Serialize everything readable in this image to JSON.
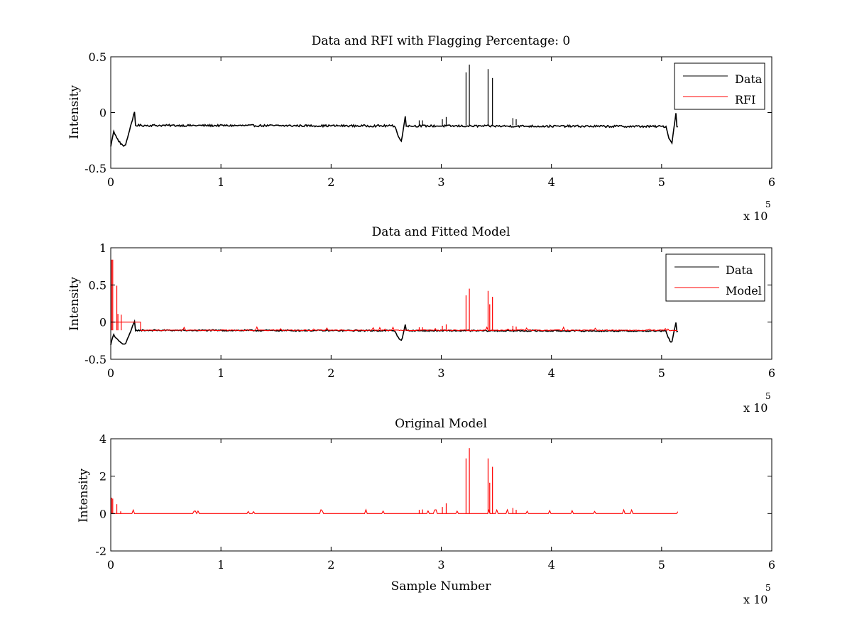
{
  "chart_data": [
    {
      "type": "line",
      "title": "Data and RFI with Flagging Percentage: 0",
      "xlabel": "",
      "ylabel": "Intensity",
      "xlim": [
        0,
        600000
      ],
      "ylim": [
        -0.5,
        0.5
      ],
      "x_ticks": [
        0,
        1,
        2,
        3,
        4,
        5,
        6
      ],
      "y_ticks": [
        "-0.5",
        "0",
        "0.5"
      ],
      "x_multiplier": "x 10",
      "x_multiplier_exp": "5",
      "legend": {
        "position": "top-right",
        "entries": [
          {
            "name": "Data",
            "color": "#000000"
          },
          {
            "name": "RFI",
            "color": "#ff0000"
          }
        ]
      },
      "series": [
        {
          "name": "Data",
          "color": "#000000",
          "baseline": -0.115,
          "end_baseline": -0.125,
          "x_end": 515000,
          "dips": [
            {
              "start": 0,
              "end": 22000,
              "min": -0.3,
              "peak": 0.02
            },
            {
              "start": 258000,
              "end": 268000,
              "min": -0.25,
              "peak": 0.02
            },
            {
              "start": 504000,
              "end": 513000,
              "min": -0.27,
              "peak": 0.0
            }
          ],
          "spikes": [
            {
              "x": 322500,
              "y": 0.36
            },
            {
              "x": 325500,
              "y": 0.43
            },
            {
              "x": 342500,
              "y": 0.39
            },
            {
              "x": 346500,
              "y": 0.31
            },
            {
              "x": 301000,
              "y": -0.06
            },
            {
              "x": 304500,
              "y": -0.04
            },
            {
              "x": 365000,
              "y": -0.05
            },
            {
              "x": 368000,
              "y": -0.06
            },
            {
              "x": 280000,
              "y": -0.07
            },
            {
              "x": 283000,
              "y": -0.07
            }
          ]
        },
        {
          "name": "RFI",
          "color": "#ff0000",
          "values": []
        }
      ]
    },
    {
      "type": "line",
      "title": "Data and Fitted Model",
      "xlabel": "",
      "ylabel": "Intensity",
      "xlim": [
        0,
        600000
      ],
      "ylim": [
        -0.5,
        1
      ],
      "x_ticks": [
        0,
        1,
        2,
        3,
        4,
        5,
        6
      ],
      "y_ticks": [
        "-0.5",
        "0",
        "0.5",
        "1"
      ],
      "x_multiplier": "x 10",
      "x_multiplier_exp": "5",
      "legend": {
        "position": "top-right",
        "entries": [
          {
            "name": "Data",
            "color": "#000000"
          },
          {
            "name": "Model",
            "color": "#ff0000"
          }
        ]
      },
      "series": [
        {
          "name": "Data",
          "color": "#000000",
          "baseline": -0.11,
          "end_baseline": -0.12,
          "x_end": 515000,
          "dips": [
            {
              "start": 0,
              "end": 22000,
              "min": -0.3,
              "peak": 0.02
            },
            {
              "start": 258000,
              "end": 268000,
              "min": -0.25,
              "peak": 0.02
            },
            {
              "start": 504000,
              "end": 513000,
              "min": -0.27,
              "peak": 0.0
            }
          ]
        },
        {
          "name": "Model",
          "color": "#ff0000",
          "baseline": -0.11,
          "x_end": 515000,
          "early_level": 0.0,
          "early_end": 27000,
          "spikes": [
            {
              "x": 800,
              "y": 0.84
            },
            {
              "x": 1800,
              "y": 0.84
            },
            {
              "x": 5500,
              "y": 0.49
            },
            {
              "x": 6500,
              "y": 0.11
            },
            {
              "x": 9500,
              "y": 0.1
            },
            {
              "x": 322500,
              "y": 0.36
            },
            {
              "x": 325500,
              "y": 0.45
            },
            {
              "x": 342500,
              "y": 0.42
            },
            {
              "x": 344000,
              "y": 0.24
            },
            {
              "x": 346500,
              "y": 0.34
            },
            {
              "x": 301000,
              "y": -0.05
            },
            {
              "x": 304500,
              "y": -0.03
            },
            {
              "x": 280000,
              "y": -0.07
            },
            {
              "x": 283000,
              "y": -0.07
            },
            {
              "x": 365000,
              "y": -0.05
            },
            {
              "x": 368000,
              "y": -0.06
            }
          ]
        }
      ]
    },
    {
      "type": "line",
      "title": "Original Model",
      "xlabel": "Sample Number",
      "ylabel": "Intensity",
      "xlim": [
        0,
        600000
      ],
      "ylim": [
        -2,
        4
      ],
      "x_ticks": [
        0,
        1,
        2,
        3,
        4,
        5,
        6
      ],
      "y_ticks": [
        "-2",
        "0",
        "2",
        "4"
      ],
      "x_multiplier": "x 10",
      "x_multiplier_exp": "5",
      "series": [
        {
          "name": "",
          "color": "#ff0000",
          "baseline": 0,
          "x_end": 515000,
          "spikes": [
            {
              "x": 800,
              "y": 0.85
            },
            {
              "x": 1800,
              "y": 0.8
            },
            {
              "x": 5500,
              "y": 0.5
            },
            {
              "x": 9000,
              "y": 0.12
            },
            {
              "x": 322500,
              "y": 2.95
            },
            {
              "x": 325500,
              "y": 3.5
            },
            {
              "x": 342500,
              "y": 2.95
            },
            {
              "x": 344000,
              "y": 1.65
            },
            {
              "x": 346500,
              "y": 2.5
            },
            {
              "x": 301000,
              "y": 0.35
            },
            {
              "x": 304500,
              "y": 0.55
            },
            {
              "x": 280000,
              "y": 0.2
            },
            {
              "x": 283000,
              "y": 0.22
            },
            {
              "x": 365000,
              "y": 0.3
            },
            {
              "x": 368000,
              "y": 0.2
            }
          ]
        }
      ]
    }
  ]
}
